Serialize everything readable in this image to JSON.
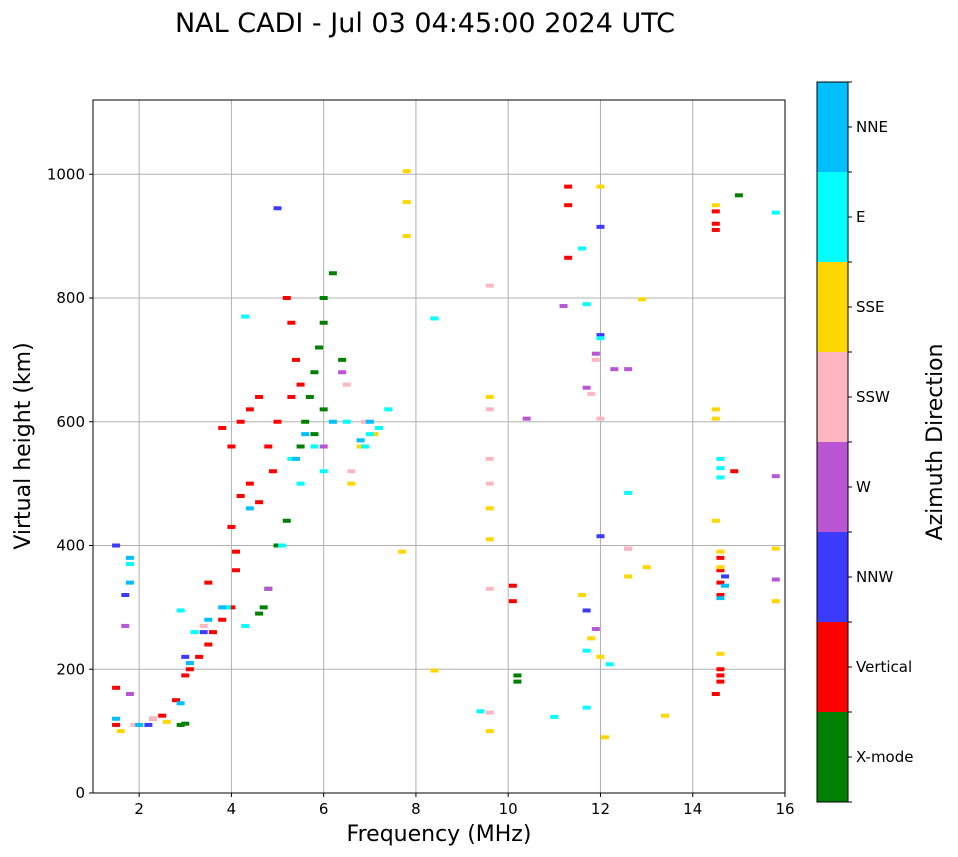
{
  "chart_data": {
    "type": "scatter",
    "title": "NAL CADI - Jul 03 04:45:00 2024 UTC",
    "xlabel": "Frequency (MHz)",
    "ylabel": "Virtual height (km)",
    "xlim": [
      1,
      16
    ],
    "ylim": [
      0,
      1120
    ],
    "xticks": [
      2,
      4,
      6,
      8,
      10,
      12,
      14,
      16
    ],
    "yticks": [
      0,
      200,
      400,
      600,
      800,
      1000
    ],
    "grid": true,
    "colorbar": {
      "label": "Azimuth Direction",
      "categories": [
        {
          "name": "X-mode",
          "color": "#008000"
        },
        {
          "name": "Vertical",
          "color": "#ff0000"
        },
        {
          "name": "NNW",
          "color": "#3b3bff"
        },
        {
          "name": "W",
          "color": "#ba55d3"
        },
        {
          "name": "SSW",
          "color": "#ffb6c1"
        },
        {
          "name": "SSE",
          "color": "#ffd700"
        },
        {
          "name": "E",
          "color": "#00ffff"
        },
        {
          "name": "NNE",
          "color": "#00bfff"
        }
      ]
    },
    "series": [
      {
        "name": "X-mode",
        "points": [
          [
            2.9,
            110
          ],
          [
            3.0,
            112
          ],
          [
            4.6,
            290
          ],
          [
            4.7,
            300
          ],
          [
            4.8,
            330
          ],
          [
            5.0,
            400
          ],
          [
            5.2,
            440
          ],
          [
            5.5,
            560
          ],
          [
            5.6,
            600
          ],
          [
            5.7,
            640
          ],
          [
            5.8,
            680
          ],
          [
            5.9,
            720
          ],
          [
            6.0,
            760
          ],
          [
            6.0,
            800
          ],
          [
            6.2,
            840
          ],
          [
            6.0,
            620
          ],
          [
            5.8,
            580
          ],
          [
            6.4,
            700
          ],
          [
            10.2,
            180
          ],
          [
            10.2,
            190
          ],
          [
            15.0,
            966
          ]
        ]
      },
      {
        "name": "Vertical",
        "points": [
          [
            1.5,
            110
          ],
          [
            1.5,
            170
          ],
          [
            2.3,
            120
          ],
          [
            2.5,
            125
          ],
          [
            2.8,
            150
          ],
          [
            3.0,
            190
          ],
          [
            3.1,
            200
          ],
          [
            3.3,
            220
          ],
          [
            3.5,
            240
          ],
          [
            3.6,
            260
          ],
          [
            3.8,
            280
          ],
          [
            4.0,
            300
          ],
          [
            3.5,
            340
          ],
          [
            4.1,
            360
          ],
          [
            4.1,
            390
          ],
          [
            4.0,
            430
          ],
          [
            4.2,
            480
          ],
          [
            4.4,
            500
          ],
          [
            4.0,
            560
          ],
          [
            4.2,
            600
          ],
          [
            4.4,
            620
          ],
          [
            4.6,
            640
          ],
          [
            4.8,
            560
          ],
          [
            4.9,
            520
          ],
          [
            5.0,
            600
          ],
          [
            5.3,
            640
          ],
          [
            5.5,
            660
          ],
          [
            5.4,
            700
          ],
          [
            5.3,
            760
          ],
          [
            5.2,
            800
          ],
          [
            3.8,
            590
          ],
          [
            4.6,
            470
          ],
          [
            10.1,
            310
          ],
          [
            10.1,
            335
          ],
          [
            11.3,
            980
          ],
          [
            11.3,
            950
          ],
          [
            11.3,
            865
          ],
          [
            14.5,
            940
          ],
          [
            14.5,
            920
          ],
          [
            14.5,
            910
          ],
          [
            14.6,
            380
          ],
          [
            14.6,
            360
          ],
          [
            14.6,
            340
          ],
          [
            14.6,
            320
          ],
          [
            14.6,
            200
          ],
          [
            14.6,
            190
          ],
          [
            14.6,
            180
          ],
          [
            14.5,
            160
          ],
          [
            14.9,
            520
          ]
        ]
      },
      {
        "name": "NNW",
        "points": [
          [
            1.5,
            400
          ],
          [
            1.7,
            320
          ],
          [
            2.2,
            110
          ],
          [
            3.0,
            220
          ],
          [
            3.4,
            260
          ],
          [
            5.0,
            945
          ],
          [
            11.7,
            295
          ],
          [
            12.0,
            415
          ],
          [
            12.0,
            915
          ],
          [
            12.0,
            740
          ],
          [
            14.7,
            350
          ]
        ]
      },
      {
        "name": "W",
        "points": [
          [
            1.7,
            270
          ],
          [
            1.8,
            160
          ],
          [
            4.8,
            330
          ],
          [
            6.4,
            680
          ],
          [
            6.0,
            560
          ],
          [
            10.4,
            605
          ],
          [
            11.7,
            655
          ],
          [
            11.9,
            710
          ],
          [
            12.3,
            685
          ],
          [
            12.6,
            685
          ],
          [
            15.8,
            512
          ],
          [
            15.8,
            345
          ],
          [
            12.6,
            395
          ],
          [
            11.9,
            265
          ],
          [
            11.2,
            787
          ]
        ]
      },
      {
        "name": "SSW",
        "points": [
          [
            1.9,
            110
          ],
          [
            2.3,
            120
          ],
          [
            3.4,
            270
          ],
          [
            6.5,
            660
          ],
          [
            6.6,
            520
          ],
          [
            6.9,
            600
          ],
          [
            9.6,
            540
          ],
          [
            9.6,
            500
          ],
          [
            9.6,
            620
          ],
          [
            9.6,
            820
          ],
          [
            9.6,
            330
          ],
          [
            9.6,
            130
          ],
          [
            12.0,
            605
          ],
          [
            11.9,
            700
          ],
          [
            12.6,
            395
          ],
          [
            11.8,
            645
          ]
        ]
      },
      {
        "name": "SSE",
        "points": [
          [
            1.6,
            100
          ],
          [
            2.6,
            115
          ],
          [
            6.6,
            500
          ],
          [
            6.8,
            560
          ],
          [
            7.1,
            580
          ],
          [
            7.8,
            1005
          ],
          [
            7.8,
            955
          ],
          [
            7.8,
            900
          ],
          [
            7.7,
            390
          ],
          [
            8.4,
            198
          ],
          [
            9.6,
            460
          ],
          [
            9.6,
            410
          ],
          [
            9.6,
            100
          ],
          [
            9.6,
            640
          ],
          [
            11.6,
            320
          ],
          [
            11.8,
            250
          ],
          [
            12.0,
            220
          ],
          [
            12.0,
            980
          ],
          [
            12.1,
            90
          ],
          [
            12.6,
            350
          ],
          [
            12.9,
            798
          ],
          [
            13.0,
            365
          ],
          [
            13.4,
            125
          ],
          [
            14.5,
            620
          ],
          [
            14.5,
            605
          ],
          [
            14.5,
            440
          ],
          [
            14.6,
            390
          ],
          [
            14.6,
            225
          ],
          [
            14.6,
            365
          ],
          [
            14.5,
            950
          ],
          [
            15.8,
            395
          ],
          [
            15.8,
            310
          ]
        ]
      },
      {
        "name": "E",
        "points": [
          [
            1.8,
            370
          ],
          [
            2.9,
            295
          ],
          [
            3.2,
            260
          ],
          [
            3.9,
            300
          ],
          [
            4.3,
            270
          ],
          [
            4.3,
            770
          ],
          [
            5.1,
            400
          ],
          [
            5.3,
            540
          ],
          [
            5.5,
            500
          ],
          [
            5.8,
            560
          ],
          [
            6.0,
            520
          ],
          [
            6.5,
            600
          ],
          [
            6.9,
            560
          ],
          [
            7.0,
            580
          ],
          [
            7.2,
            590
          ],
          [
            7.4,
            620
          ],
          [
            8.4,
            767
          ],
          [
            9.4,
            132
          ],
          [
            11.0,
            123
          ],
          [
            11.6,
            880
          ],
          [
            11.7,
            790
          ],
          [
            11.7,
            230
          ],
          [
            11.7,
            138
          ],
          [
            12.2,
            208
          ],
          [
            12.6,
            485
          ],
          [
            14.6,
            540
          ],
          [
            14.6,
            525
          ],
          [
            14.6,
            510
          ],
          [
            15.8,
            938
          ],
          [
            12.0,
            735
          ]
        ]
      },
      {
        "name": "NNE",
        "points": [
          [
            1.5,
            120
          ],
          [
            1.8,
            380
          ],
          [
            1.8,
            340
          ],
          [
            2.0,
            110
          ],
          [
            2.9,
            145
          ],
          [
            3.1,
            210
          ],
          [
            3.5,
            280
          ],
          [
            3.8,
            300
          ],
          [
            4.4,
            460
          ],
          [
            5.4,
            540
          ],
          [
            5.6,
            580
          ],
          [
            6.2,
            600
          ],
          [
            6.8,
            570
          ],
          [
            7.0,
            600
          ],
          [
            14.6,
            315
          ],
          [
            14.7,
            335
          ]
        ]
      }
    ]
  }
}
